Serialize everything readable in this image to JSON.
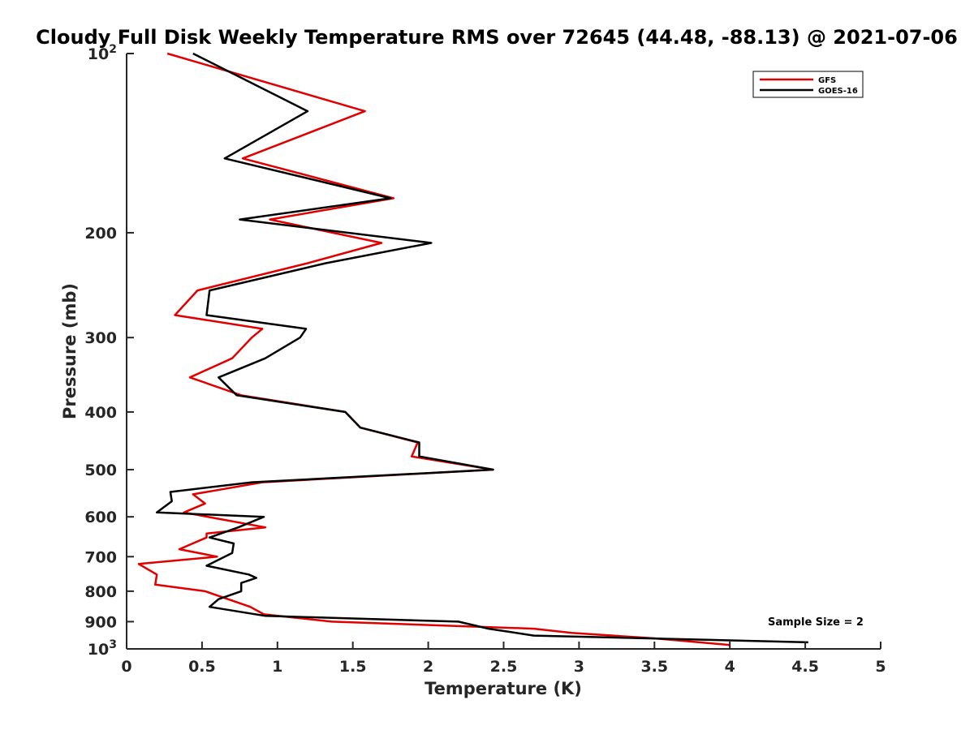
{
  "chart_data": {
    "type": "line",
    "title": "Cloudy Full Disk Weekly Temperature RMS over 72645 (44.48, -88.13) @ 2021-07-06",
    "xlabel": "Temperature (K)",
    "ylabel": "Pressure (mb)",
    "xlim": [
      0,
      5
    ],
    "ylim": [
      100,
      1000
    ],
    "y_scale": "log",
    "y_reversed": true,
    "grid": false,
    "legend_position": "top-right",
    "annotation": "Sample Size = 2",
    "x_ticks": [
      {
        "value": 0,
        "label": "0"
      },
      {
        "value": 0.5,
        "label": "0.5"
      },
      {
        "value": 1,
        "label": "1"
      },
      {
        "value": 1.5,
        "label": "1.5"
      },
      {
        "value": 2,
        "label": "2"
      },
      {
        "value": 2.5,
        "label": "2.5"
      },
      {
        "value": 3,
        "label": "3"
      },
      {
        "value": 3.5,
        "label": "3.5"
      },
      {
        "value": 4,
        "label": "4"
      },
      {
        "value": 4.5,
        "label": "4.5"
      },
      {
        "value": 5,
        "label": "5"
      }
    ],
    "y_ticks": [
      {
        "value": 100,
        "base": "10",
        "exp": "2"
      },
      {
        "value": 200,
        "label": "200"
      },
      {
        "value": 300,
        "label": "300"
      },
      {
        "value": 400,
        "label": "400"
      },
      {
        "value": 500,
        "label": "500"
      },
      {
        "value": 600,
        "label": "600"
      },
      {
        "value": 700,
        "label": "700"
      },
      {
        "value": 800,
        "label": "800"
      },
      {
        "value": 900,
        "label": "900"
      },
      {
        "value": 1000,
        "base": "10",
        "exp": "3"
      }
    ],
    "series": [
      {
        "name": "GFS",
        "color": "#e00000",
        "points": [
          [
            0.27,
            100
          ],
          [
            1.58,
            125
          ],
          [
            0.77,
            150
          ],
          [
            1.77,
            175
          ],
          [
            0.95,
            190
          ],
          [
            1.69,
            208
          ],
          [
            1.2,
            225
          ],
          [
            0.47,
            250
          ],
          [
            0.32,
            275
          ],
          [
            0.9,
            290
          ],
          [
            0.83,
            300
          ],
          [
            0.7,
            325
          ],
          [
            0.42,
            350
          ],
          [
            0.76,
            375
          ],
          [
            1.45,
            400
          ],
          [
            1.55,
            425
          ],
          [
            1.93,
            450
          ],
          [
            1.89,
            475
          ],
          [
            2.43,
            500
          ],
          [
            0.9,
            525
          ],
          [
            0.44,
            550
          ],
          [
            0.52,
            570
          ],
          [
            0.38,
            590
          ],
          [
            0.92,
            625
          ],
          [
            0.53,
            640
          ],
          [
            0.53,
            650
          ],
          [
            0.35,
            680
          ],
          [
            0.6,
            700
          ],
          [
            0.08,
            720
          ],
          [
            0.2,
            750
          ],
          [
            0.19,
            780
          ],
          [
            0.52,
            800
          ],
          [
            0.82,
            850
          ],
          [
            0.91,
            875
          ],
          [
            1.36,
            900
          ],
          [
            2.7,
            925
          ],
          [
            2.95,
            940
          ],
          [
            3.5,
            960
          ],
          [
            4.0,
            985
          ]
        ]
      },
      {
        "name": "GOES-16",
        "color": "#000000",
        "points": [
          [
            0.44,
            100
          ],
          [
            1.2,
            125
          ],
          [
            0.65,
            150
          ],
          [
            1.75,
            175
          ],
          [
            0.75,
            190
          ],
          [
            2.02,
            208
          ],
          [
            1.32,
            225
          ],
          [
            0.55,
            250
          ],
          [
            0.53,
            275
          ],
          [
            1.19,
            290
          ],
          [
            1.15,
            300
          ],
          [
            0.92,
            325
          ],
          [
            0.61,
            350
          ],
          [
            0.73,
            375
          ],
          [
            1.45,
            400
          ],
          [
            1.55,
            425
          ],
          [
            1.94,
            450
          ],
          [
            1.94,
            475
          ],
          [
            2.43,
            500
          ],
          [
            0.83,
            525
          ],
          [
            0.29,
            545
          ],
          [
            0.3,
            565
          ],
          [
            0.2,
            590
          ],
          [
            0.91,
            600
          ],
          [
            0.74,
            625
          ],
          [
            0.55,
            650
          ],
          [
            0.71,
            665
          ],
          [
            0.7,
            690
          ],
          [
            0.53,
            725
          ],
          [
            0.81,
            750
          ],
          [
            0.86,
            760
          ],
          [
            0.76,
            775
          ],
          [
            0.76,
            800
          ],
          [
            0.61,
            825
          ],
          [
            0.55,
            850
          ],
          [
            0.92,
            880
          ],
          [
            2.2,
            900
          ],
          [
            2.4,
            925
          ],
          [
            2.7,
            950
          ],
          [
            4.52,
            975
          ]
        ]
      }
    ]
  }
}
